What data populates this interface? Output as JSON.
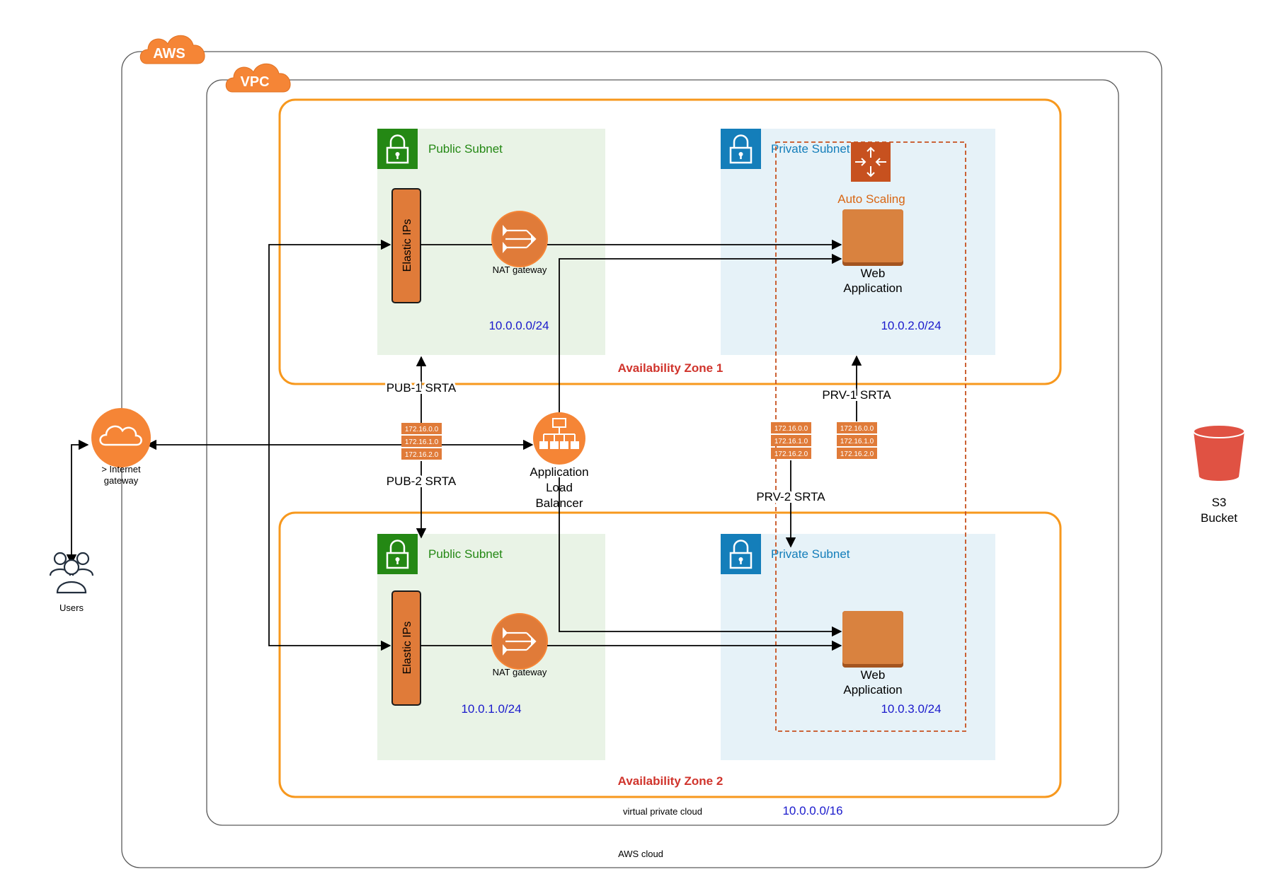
{
  "aws": {
    "badge": "AWS",
    "caption": "AWS cloud"
  },
  "vpc": {
    "badge": "VPC",
    "caption": "virtual private cloud",
    "cidr": "10.0.0.0/16"
  },
  "zones": [
    {
      "label": "Availability Zone 1"
    },
    {
      "label": "Availability Zone 2"
    }
  ],
  "public_subnets": [
    {
      "label": "Public Subnet",
      "cidr": "10.0.0.0/24",
      "eip_label": "Elastic IPs",
      "nat_label": "NAT gateway"
    },
    {
      "label": "Public Subnet",
      "cidr": "10.0.1.0/24",
      "eip_label": "Elastic IPs",
      "nat_label": "NAT gateway"
    }
  ],
  "private_subnets": [
    {
      "label": "Private Subnet",
      "cidr": "10.0.2.0/24",
      "app_line1": "Web",
      "app_line2": "Application"
    },
    {
      "label": "Private Subnet",
      "cidr": "10.0.3.0/24",
      "app_line1": "Web",
      "app_line2": "Application"
    }
  ],
  "autoscaling": {
    "label": "Auto Scaling"
  },
  "route_tables": {
    "pub1": "PUB-1 SRTA",
    "pub2": "PUB-2 SRTA",
    "prv1": "PRV-1 SRTA",
    "prv2": "PRV-2 SRTA",
    "entries": [
      "172.16.0.0",
      "172.16.1.0",
      "172.16.2.0"
    ]
  },
  "alb": {
    "line1": "Application",
    "line2": "Load",
    "line3": "Balancer"
  },
  "igw": {
    "line1": "> Internet",
    "line2": "gateway"
  },
  "users": {
    "label": "Users"
  },
  "s3": {
    "line1": "S3",
    "line2": "Bucket"
  },
  "colors": {
    "aws_orange": "#F58536",
    "zone_orange": "#F7981D",
    "public_green": "#248814",
    "public_bg": "#E9F3E6",
    "private_blue": "#147EBA",
    "private_bg": "#E6F2F8",
    "az_red": "#D0342C",
    "cidr_blue": "#1A1ACC",
    "eip_orange": "#E07B39",
    "autoscaling_orange": "#C7511F",
    "s3_red": "#E05243"
  }
}
